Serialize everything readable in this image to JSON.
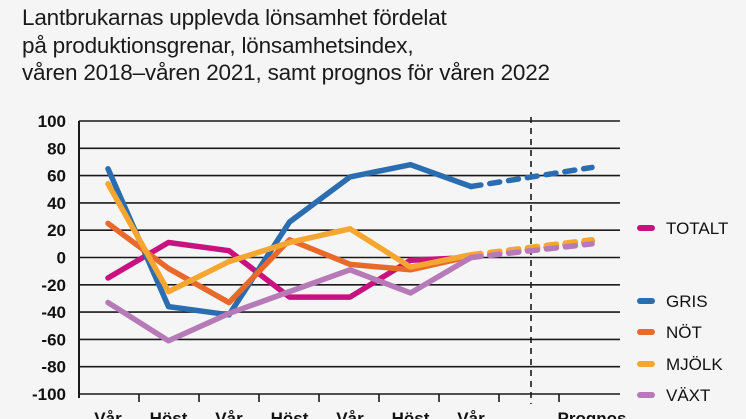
{
  "chart_data": {
    "type": "line",
    "title_lines": [
      "Lantbrukarnas upplevda lönsamhet fördelat",
      "på produktionsgrenar, lönsamhetsindex,",
      "våren 2018–våren 2021, samt prognos för våren 2022"
    ],
    "xlabel": "",
    "ylabel": "",
    "ylim": [
      -100,
      100
    ],
    "yticks": [
      100,
      80,
      60,
      40,
      20,
      0,
      -20,
      -40,
      -60,
      -80,
      -100
    ],
    "categories": [
      "Vår",
      "Höst",
      "Vår",
      "Höst",
      "Vår",
      "Höst",
      "Vår",
      "Prognos"
    ],
    "forecast_start_index": 6,
    "forecast_divider_label": "",
    "grid": true,
    "legend_position": "right",
    "series": [
      {
        "name": "TOTALT",
        "color": "#c8127f",
        "values": [
          -15,
          11,
          5,
          -29,
          -29,
          -2,
          0,
          12
        ]
      },
      {
        "name": "GRIS",
        "color": "#2a6db0",
        "values": [
          65,
          -36,
          -42,
          26,
          59,
          68,
          52,
          66
        ]
      },
      {
        "name": "NÖT",
        "color": "#e8692a",
        "values": [
          25,
          -8,
          -33,
          13,
          -5,
          -9,
          1,
          12
        ]
      },
      {
        "name": "MJÖLK",
        "color": "#f5a631",
        "values": [
          54,
          -25,
          -3,
          11,
          21,
          -7,
          2,
          13
        ]
      },
      {
        "name": "VÄXT",
        "color": "#b77ab8",
        "values": [
          -33,
          -61,
          -41,
          -25,
          -9,
          -26,
          0,
          10
        ]
      }
    ]
  }
}
